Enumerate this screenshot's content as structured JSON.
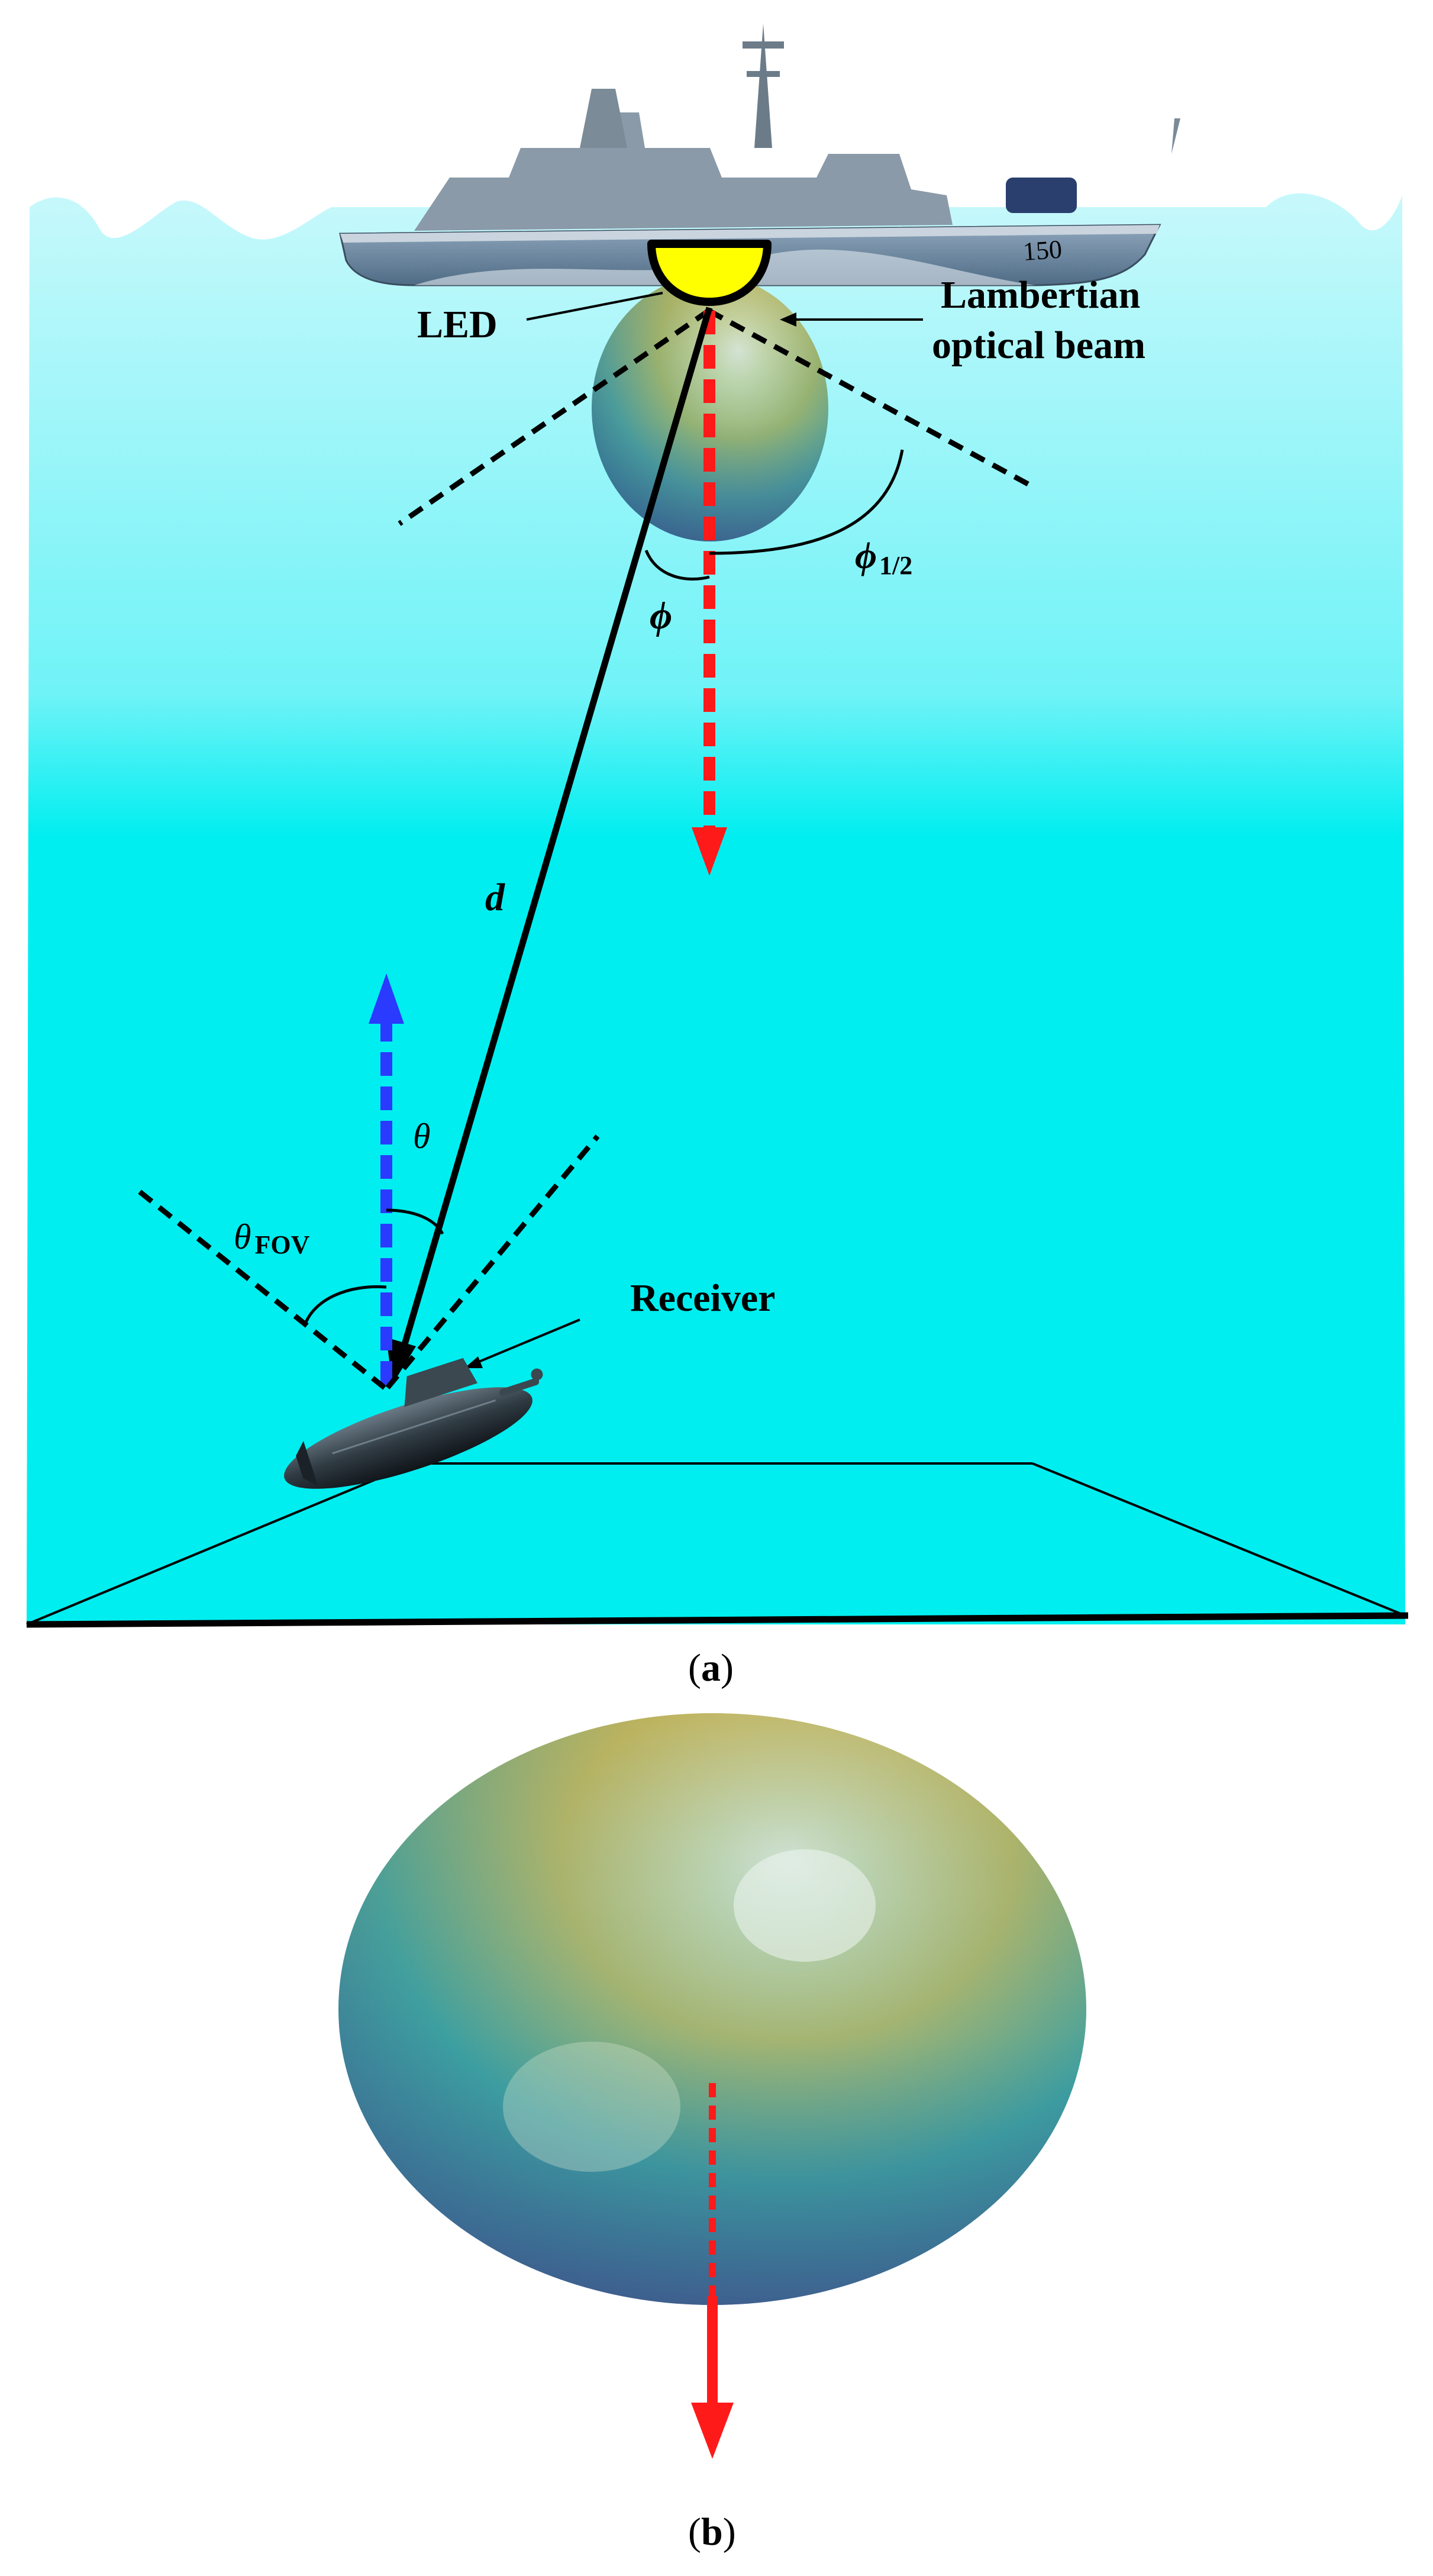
{
  "panel_a": {
    "caption_open": "(",
    "caption_letter": "a",
    "caption_close": ")",
    "labels": {
      "led": "LED",
      "beam_line1": "Lambertian",
      "beam_line2": "optical beam",
      "phi_half_symbol": "ϕ",
      "phi_half_sub": "1/2",
      "phi": "ϕ",
      "distance": "d",
      "theta": "θ",
      "theta_fov_symbol": "θ",
      "theta_fov_sub": "FOV",
      "receiver": "Receiver"
    },
    "ship_hull_number": "150",
    "colors": {
      "water_top": "#bdf6fa",
      "water": "#00f0f0",
      "led": "#ffff00",
      "led_axis": "#ff1a1a",
      "receiver_axis": "#2a3aff",
      "link": "#000000"
    }
  },
  "panel_b": {
    "caption_open": "(",
    "caption_letter": "b",
    "caption_close": ")",
    "colors": {
      "axis_arrow": "#ff1a1a"
    }
  }
}
